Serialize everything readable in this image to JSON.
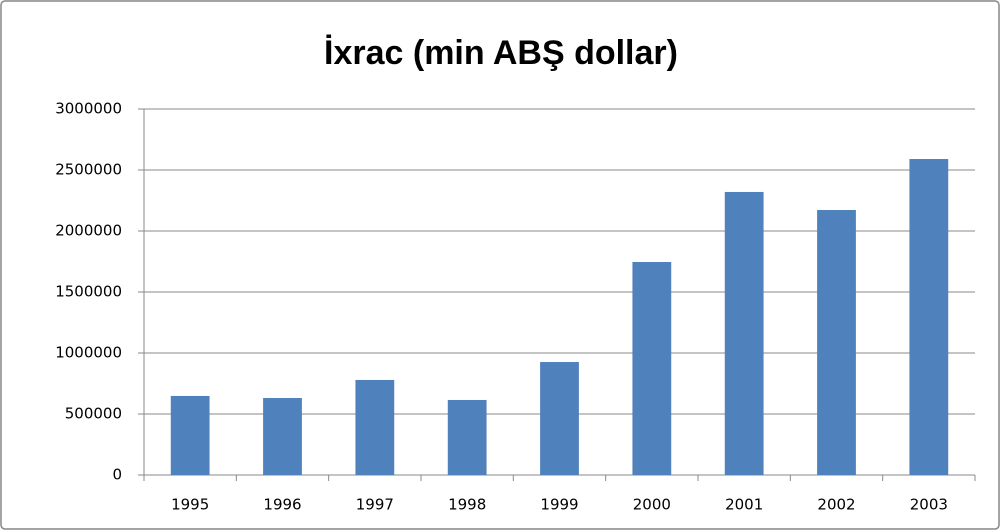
{
  "chart_data": {
    "type": "bar",
    "title": "İxrac (min ABŞ dollar)",
    "categories": [
      "1995",
      "1996",
      "1997",
      "1998",
      "1999",
      "2000",
      "2001",
      "2002",
      "2003"
    ],
    "values": [
      648000,
      631000,
      779000,
      615000,
      926000,
      1746000,
      2320000,
      2172000,
      2590000
    ],
    "color": "#4f81bd",
    "ylim": [
      0,
      3000000
    ],
    "yticks": [
      0,
      500000,
      1000000,
      1500000,
      2000000,
      2500000,
      3000000
    ],
    "grid": true
  }
}
